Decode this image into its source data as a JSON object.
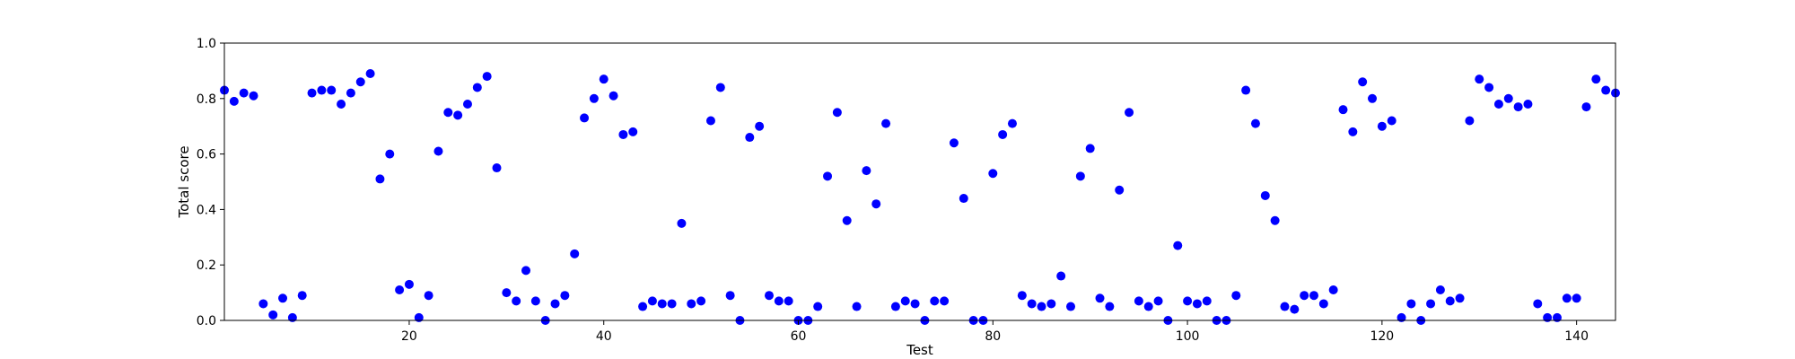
{
  "chart_data": {
    "type": "scatter",
    "xlabel": "Test",
    "ylabel": "Total score",
    "xlim": [
      1,
      144
    ],
    "ylim": [
      0,
      1.0
    ],
    "xticks": [
      20,
      40,
      60,
      80,
      100,
      120,
      140
    ],
    "yticks": [
      0.0,
      0.2,
      0.4,
      0.6,
      0.8,
      1.0
    ],
    "xtick_labels": [
      "20",
      "40",
      "60",
      "80",
      "100",
      "120",
      "140"
    ],
    "ytick_labels": [
      "0.0",
      "0.2",
      "0.4",
      "0.6",
      "0.8",
      "1.0"
    ],
    "grid": false,
    "marker_color": "#0000ff",
    "series": [
      {
        "points": [
          [
            1,
            0.83
          ],
          [
            2,
            0.79
          ],
          [
            3,
            0.82
          ],
          [
            4,
            0.81
          ],
          [
            5,
            0.06
          ],
          [
            6,
            0.02
          ],
          [
            7,
            0.08
          ],
          [
            8,
            0.01
          ],
          [
            9,
            0.09
          ],
          [
            10,
            0.82
          ],
          [
            11,
            0.83
          ],
          [
            12,
            0.83
          ],
          [
            13,
            0.78
          ],
          [
            14,
            0.82
          ],
          [
            15,
            0.86
          ],
          [
            16,
            0.89
          ],
          [
            17,
            0.51
          ],
          [
            18,
            0.6
          ],
          [
            19,
            0.11
          ],
          [
            20,
            0.13
          ],
          [
            21,
            0.01
          ],
          [
            22,
            0.09
          ],
          [
            23,
            0.61
          ],
          [
            24,
            0.75
          ],
          [
            25,
            0.74
          ],
          [
            26,
            0.78
          ],
          [
            27,
            0.84
          ],
          [
            28,
            0.88
          ],
          [
            29,
            0.55
          ],
          [
            30,
            0.1
          ],
          [
            31,
            0.07
          ],
          [
            32,
            0.18
          ],
          [
            33,
            0.07
          ],
          [
            34,
            0.0
          ],
          [
            35,
            0.06
          ],
          [
            36,
            0.09
          ],
          [
            37,
            0.24
          ],
          [
            38,
            0.73
          ],
          [
            39,
            0.8
          ],
          [
            40,
            0.87
          ],
          [
            41,
            0.81
          ],
          [
            42,
            0.67
          ],
          [
            43,
            0.68
          ],
          [
            44,
            0.05
          ],
          [
            45,
            0.07
          ],
          [
            46,
            0.06
          ],
          [
            47,
            0.06
          ],
          [
            48,
            0.35
          ],
          [
            49,
            0.06
          ],
          [
            50,
            0.07
          ],
          [
            51,
            0.72
          ],
          [
            52,
            0.84
          ],
          [
            53,
            0.09
          ],
          [
            54,
            0.0
          ],
          [
            55,
            0.66
          ],
          [
            56,
            0.7
          ],
          [
            57,
            0.09
          ],
          [
            58,
            0.07
          ],
          [
            59,
            0.07
          ],
          [
            60,
            0.0
          ],
          [
            61,
            0.0
          ],
          [
            62,
            0.05
          ],
          [
            63,
            0.52
          ],
          [
            64,
            0.75
          ],
          [
            65,
            0.36
          ],
          [
            66,
            0.05
          ],
          [
            67,
            0.54
          ],
          [
            68,
            0.42
          ],
          [
            69,
            0.71
          ],
          [
            70,
            0.05
          ],
          [
            71,
            0.07
          ],
          [
            72,
            0.06
          ],
          [
            73,
            0.0
          ],
          [
            74,
            0.07
          ],
          [
            75,
            0.07
          ],
          [
            76,
            0.64
          ],
          [
            77,
            0.44
          ],
          [
            78,
            0.0
          ],
          [
            79,
            0.0
          ],
          [
            80,
            0.53
          ],
          [
            81,
            0.67
          ],
          [
            82,
            0.71
          ],
          [
            83,
            0.09
          ],
          [
            84,
            0.06
          ],
          [
            85,
            0.05
          ],
          [
            86,
            0.06
          ],
          [
            87,
            0.16
          ],
          [
            88,
            0.05
          ],
          [
            89,
            0.52
          ],
          [
            90,
            0.62
          ],
          [
            91,
            0.08
          ],
          [
            92,
            0.05
          ],
          [
            93,
            0.47
          ],
          [
            94,
            0.75
          ],
          [
            95,
            0.07
          ],
          [
            96,
            0.05
          ],
          [
            97,
            0.07
          ],
          [
            98,
            0.0
          ],
          [
            99,
            0.27
          ],
          [
            100,
            0.07
          ],
          [
            101,
            0.06
          ],
          [
            102,
            0.07
          ],
          [
            103,
            0.0
          ],
          [
            104,
            0.0
          ],
          [
            105,
            0.09
          ],
          [
            106,
            0.83
          ],
          [
            107,
            0.71
          ],
          [
            108,
            0.45
          ],
          [
            109,
            0.36
          ],
          [
            110,
            0.05
          ],
          [
            111,
            0.04
          ],
          [
            112,
            0.09
          ],
          [
            113,
            0.09
          ],
          [
            114,
            0.06
          ],
          [
            115,
            0.11
          ],
          [
            116,
            0.76
          ],
          [
            117,
            0.68
          ],
          [
            118,
            0.86
          ],
          [
            119,
            0.8
          ],
          [
            120,
            0.7
          ],
          [
            121,
            0.72
          ],
          [
            122,
            0.01
          ],
          [
            123,
            0.06
          ],
          [
            124,
            0.0
          ],
          [
            125,
            0.06
          ],
          [
            126,
            0.11
          ],
          [
            127,
            0.07
          ],
          [
            128,
            0.08
          ],
          [
            129,
            0.72
          ],
          [
            130,
            0.87
          ],
          [
            131,
            0.84
          ],
          [
            132,
            0.78
          ],
          [
            133,
            0.8
          ],
          [
            134,
            0.77
          ],
          [
            135,
            0.78
          ],
          [
            136,
            0.06
          ],
          [
            137,
            0.01
          ],
          [
            138,
            0.01
          ],
          [
            139,
            0.08
          ],
          [
            140,
            0.08
          ],
          [
            141,
            0.77
          ],
          [
            142,
            0.87
          ],
          [
            143,
            0.83
          ],
          [
            144,
            0.82
          ]
        ]
      }
    ]
  }
}
